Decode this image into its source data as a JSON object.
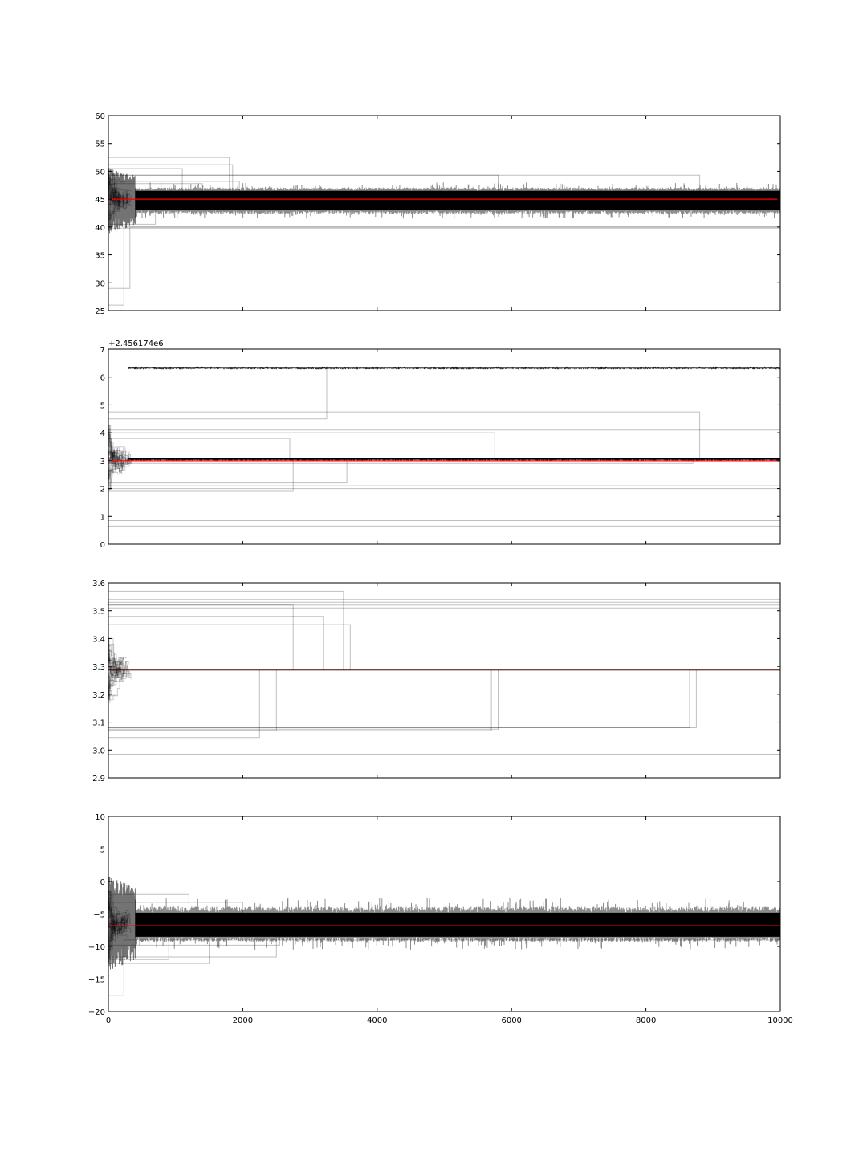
{
  "chart_data": [
    {
      "type": "line",
      "title": "",
      "xlabel": "",
      "ylabel": "",
      "xlim": [
        0,
        10000
      ],
      "ylim": [
        25,
        60
      ],
      "yticks": [
        "25",
        "30",
        "35",
        "40",
        "45",
        "50",
        "55",
        "60"
      ],
      "xtick_labels_visible": false,
      "grid": false,
      "offset_label": "",
      "reference_line": {
        "value": 45,
        "color": "#ff0000"
      },
      "walker_color": "#000000",
      "walker_alpha": 0.2,
      "converged_band": {
        "from": 43,
        "to": 46.5,
        "noise_min": 41.5,
        "noise_max": 48,
        "start_x": 400
      },
      "stuck_walkers": [
        {
          "start": 52.5,
          "end_x": 1800,
          "final": 45
        },
        {
          "start": 51.2,
          "end_x": 1850,
          "final": 45
        },
        {
          "start": 50.5,
          "end_x": 1100,
          "final": 45
        },
        {
          "start": 49.3,
          "end_x": 5800,
          "final": 45
        },
        {
          "start": 49.3,
          "end_x": 8800,
          "final": 45
        },
        {
          "start": 48.2,
          "end_x": 1950,
          "final": 45
        },
        {
          "start": 47.8,
          "end_x": 1400,
          "final": 45
        },
        {
          "start": 40.5,
          "end_x": 700,
          "final": 44
        },
        {
          "start": 39.8,
          "end_x": 10000,
          "final": 39.8
        },
        {
          "start": 29.0,
          "end_x": 320,
          "final": 40
        },
        {
          "start": 26.0,
          "end_x": 230,
          "final": 40
        }
      ]
    },
    {
      "type": "line",
      "title": "",
      "xlabel": "",
      "ylabel": "",
      "xlim": [
        0,
        10000
      ],
      "ylim": [
        0,
        7
      ],
      "yticks": [
        "0",
        "1",
        "2",
        "3",
        "4",
        "5",
        "6",
        "7"
      ],
      "xtick_labels_visible": false,
      "grid": false,
      "offset_label": "+2.456174e6",
      "reference_line": {
        "value": 3.0,
        "color": "#ff0000"
      },
      "walker_color": "#000000",
      "walker_alpha": 0.2,
      "modes": [
        {
          "value": 6.33,
          "width": 0.05
        },
        {
          "value": 3.06,
          "width": 0.05
        }
      ],
      "stuck_walkers": [
        {
          "start": 4.5,
          "end_x": 3250,
          "final": 6.33
        },
        {
          "start": 4.75,
          "end_x": 8800,
          "final": 3.06
        },
        {
          "start": 4.1,
          "end_x": 10000,
          "final": 4.1
        },
        {
          "start": 4.0,
          "end_x": 5750,
          "final": 3.06
        },
        {
          "start": 3.8,
          "end_x": 2700,
          "final": 3.06
        },
        {
          "start": 2.9,
          "end_x": 8700,
          "final": 3.06
        },
        {
          "start": 2.2,
          "end_x": 3550,
          "final": 3.06
        },
        {
          "start": 2.1,
          "end_x": 10000,
          "final": 2.1
        },
        {
          "start": 2.0,
          "end_x": 10000,
          "final": 2.0
        },
        {
          "start": 1.9,
          "end_x": 2750,
          "final": 3.06
        },
        {
          "start": 0.85,
          "end_x": 10000,
          "final": 0.85
        },
        {
          "start": 0.65,
          "end_x": 10000,
          "final": 0.65
        }
      ]
    },
    {
      "type": "line",
      "title": "",
      "xlabel": "",
      "ylabel": "",
      "xlim": [
        0,
        10000
      ],
      "ylim": [
        2.9,
        3.6
      ],
      "yticks": [
        "2.9",
        "3.0",
        "3.1",
        "3.2",
        "3.3",
        "3.4",
        "3.5",
        "3.6"
      ],
      "xtick_labels_visible": false,
      "grid": false,
      "offset_label": "",
      "reference_line": {
        "value": 3.288,
        "color": "#ff0000"
      },
      "walker_color": "#000000",
      "walker_alpha": 0.2,
      "converged_value": 3.288,
      "stuck_walkers": [
        {
          "start": 3.57,
          "end_x": 3500,
          "final": 3.288
        },
        {
          "start": 3.54,
          "end_x": 10000,
          "final": 3.54
        },
        {
          "start": 3.53,
          "end_x": 10000,
          "final": 3.53
        },
        {
          "start": 3.52,
          "end_x": 10000,
          "final": 3.52
        },
        {
          "start": 3.51,
          "end_x": 10000,
          "final": 3.51
        },
        {
          "start": 3.52,
          "end_x": 2750,
          "final": 3.288
        },
        {
          "start": 3.48,
          "end_x": 3200,
          "final": 3.288
        },
        {
          "start": 3.45,
          "end_x": 3600,
          "final": 3.288
        },
        {
          "start": 3.08,
          "end_x": 8750,
          "final": 3.288
        },
        {
          "start": 3.08,
          "end_x": 8650,
          "final": 3.288
        },
        {
          "start": 3.075,
          "end_x": 5800,
          "final": 3.288
        },
        {
          "start": 3.07,
          "end_x": 5700,
          "final": 3.288
        },
        {
          "start": 3.07,
          "end_x": 2500,
          "final": 3.288
        },
        {
          "start": 3.045,
          "end_x": 2250,
          "final": 3.288
        },
        {
          "start": 2.985,
          "end_x": 10000,
          "final": 2.985
        }
      ]
    },
    {
      "type": "line",
      "title": "",
      "xlabel": "",
      "ylabel": "",
      "xlim": [
        0,
        10000
      ],
      "ylim": [
        -20,
        10
      ],
      "yticks": [
        "−20",
        "−15",
        "−10",
        "−5",
        "0",
        "5",
        "10"
      ],
      "xticks": [
        "0",
        "2000",
        "4000",
        "6000",
        "8000",
        "10000"
      ],
      "xtick_labels_visible": true,
      "grid": false,
      "offset_label": "",
      "reference_line": {
        "value": -6.8,
        "color": "#ff0000"
      },
      "walker_color": "#000000",
      "walker_alpha": 0.2,
      "converged_band": {
        "from": -8.5,
        "to": -4.8,
        "noise_min": -10.5,
        "noise_max": -2.5,
        "start_x": 400
      },
      "stuck_walkers": [
        {
          "start": -2.0,
          "end_x": 1200,
          "final": -6
        },
        {
          "start": -3.2,
          "end_x": 2000,
          "final": -6
        },
        {
          "start": -9.8,
          "end_x": 2550,
          "final": -7
        },
        {
          "start": -11.6,
          "end_x": 2500,
          "final": -7
        },
        {
          "start": -12.6,
          "end_x": 1500,
          "final": -7
        },
        {
          "start": -12.0,
          "end_x": 900,
          "final": -7
        },
        {
          "start": -17.5,
          "end_x": 230,
          "final": -9
        }
      ]
    }
  ]
}
